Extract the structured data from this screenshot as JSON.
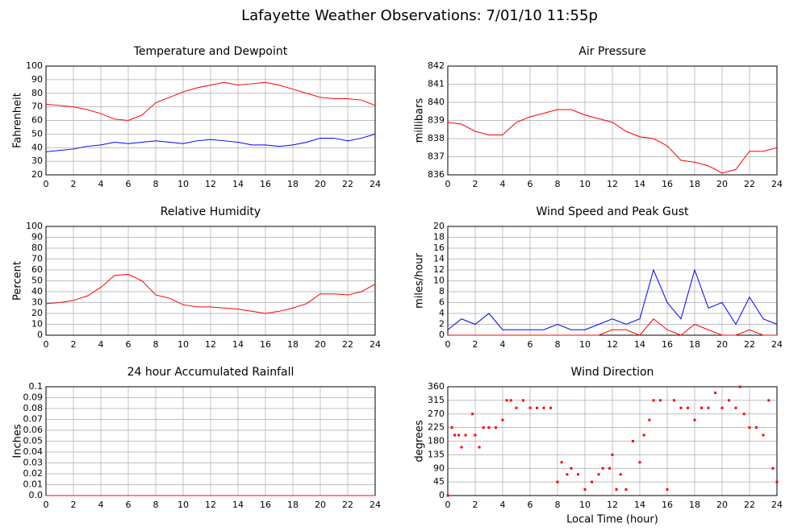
{
  "title": "Lafayette Weather Observations: 7/01/10 11:55p",
  "chart_data": [
    {
      "type": "line",
      "title": "Temperature and Dewpoint",
      "ylabel": "Fahrenheit",
      "x": [
        0,
        1,
        2,
        3,
        4,
        5,
        6,
        7,
        8,
        9,
        10,
        11,
        12,
        13,
        14,
        15,
        16,
        17,
        18,
        19,
        20,
        21,
        22,
        23,
        24
      ],
      "series": [
        {
          "color": "#ff0000",
          "values": [
            72,
            71,
            70,
            68,
            65,
            61,
            60,
            64,
            73,
            77,
            81,
            84,
            86,
            88,
            86,
            87,
            88,
            86,
            83,
            80,
            77,
            76,
            76,
            75,
            71
          ]
        },
        {
          "color": "#0000ff",
          "values": [
            37,
            38,
            39,
            41,
            42,
            44,
            43,
            44,
            45,
            44,
            43,
            45,
            46,
            45,
            44,
            42,
            42,
            41,
            42,
            44,
            47,
            47,
            45,
            47,
            50
          ]
        }
      ],
      "xlim": [
        0,
        24
      ],
      "xticks": [
        0,
        2,
        4,
        6,
        8,
        10,
        12,
        14,
        16,
        18,
        20,
        22,
        24
      ],
      "ylim": [
        20,
        100
      ],
      "yticks": [
        20,
        30,
        40,
        50,
        60,
        70,
        80,
        90,
        100
      ],
      "grid": true
    },
    {
      "type": "line",
      "title": "Air Pressure",
      "ylabel": "millibars",
      "x": [
        0,
        1,
        2,
        3,
        4,
        5,
        6,
        7,
        8,
        9,
        10,
        11,
        12,
        13,
        14,
        15,
        16,
        17,
        18,
        19,
        20,
        21,
        22,
        23,
        24
      ],
      "series": [
        {
          "color": "#ff0000",
          "values": [
            838.9,
            838.8,
            838.4,
            838.2,
            838.2,
            838.9,
            839.2,
            839.4,
            839.6,
            839.6,
            839.3,
            839.1,
            838.9,
            838.4,
            838.1,
            838.0,
            837.6,
            836.8,
            836.7,
            836.5,
            836.1,
            836.3,
            837.3,
            837.3,
            837.5
          ]
        }
      ],
      "xlim": [
        0,
        24
      ],
      "xticks": [
        0,
        2,
        4,
        6,
        8,
        10,
        12,
        14,
        16,
        18,
        20,
        22,
        24
      ],
      "ylim": [
        836,
        842
      ],
      "yticks": [
        836,
        837,
        838,
        839,
        840,
        841,
        842
      ],
      "grid": true
    },
    {
      "type": "line",
      "title": "Relative Humidity",
      "ylabel": "Percent",
      "x": [
        0,
        1,
        2,
        3,
        4,
        5,
        6,
        7,
        8,
        9,
        10,
        11,
        12,
        13,
        14,
        15,
        16,
        17,
        18,
        19,
        20,
        21,
        22,
        23,
        24
      ],
      "series": [
        {
          "color": "#ff0000",
          "values": [
            29,
            30,
            32,
            36,
            44,
            55,
            56,
            50,
            37,
            34,
            28,
            26,
            26,
            25,
            24,
            22,
            20,
            22,
            25,
            29,
            38,
            38,
            37,
            40,
            47
          ]
        }
      ],
      "xlim": [
        0,
        24
      ],
      "xticks": [
        0,
        2,
        4,
        6,
        8,
        10,
        12,
        14,
        16,
        18,
        20,
        22,
        24
      ],
      "ylim": [
        0,
        100
      ],
      "yticks": [
        0,
        10,
        20,
        30,
        40,
        50,
        60,
        70,
        80,
        90,
        100
      ],
      "grid": true
    },
    {
      "type": "line",
      "title": "Wind Speed and Peak Gust",
      "ylabel": "miles/hour",
      "x": [
        0,
        1,
        2,
        3,
        4,
        5,
        6,
        7,
        8,
        9,
        10,
        11,
        12,
        13,
        14,
        15,
        16,
        17,
        18,
        19,
        20,
        21,
        22,
        23,
        24
      ],
      "series": [
        {
          "color": "#0000ff",
          "values": [
            1,
            3,
            2,
            4,
            1,
            1,
            1,
            1,
            2,
            1,
            1,
            2,
            3,
            2,
            3,
            12,
            6,
            3,
            12,
            5,
            6,
            2,
            7,
            3,
            2
          ]
        },
        {
          "color": "#ff0000",
          "values": [
            0,
            0,
            0,
            0,
            0,
            0,
            0,
            0,
            0,
            0,
            0,
            0,
            1,
            1,
            0,
            3,
            1,
            0,
            2,
            1,
            0,
            0,
            1,
            0,
            0
          ]
        }
      ],
      "xlim": [
        0,
        24
      ],
      "xticks": [
        0,
        2,
        4,
        6,
        8,
        10,
        12,
        14,
        16,
        18,
        20,
        22,
        24
      ],
      "ylim": [
        0,
        20
      ],
      "yticks": [
        0,
        2,
        4,
        6,
        8,
        10,
        12,
        14,
        16,
        18,
        20
      ],
      "grid": true
    },
    {
      "type": "line",
      "title": "24 hour Accumulated Rainfall",
      "ylabel": "Inches",
      "x": [
        0,
        24
      ],
      "series": [
        {
          "color": "#ff0000",
          "values": [
            0,
            0
          ]
        }
      ],
      "xlim": [
        0,
        24
      ],
      "xticks": [
        0,
        2,
        4,
        6,
        8,
        10,
        12,
        14,
        16,
        18,
        20,
        22,
        24
      ],
      "ylim": [
        0,
        0.1
      ],
      "yticks": [
        {
          "value": 0,
          "label": "0.0"
        },
        0.01,
        0.02,
        0.03,
        0.04,
        0.05,
        0.06,
        0.07,
        0.08,
        0.09,
        0.1
      ],
      "grid": true
    },
    {
      "type": "scatter",
      "title": "Wind Direction",
      "ylabel": "degrees",
      "xlabel": "Local Time (hour)",
      "x": [
        0,
        0.3,
        0.5,
        0.8,
        1,
        1.3,
        1.8,
        2,
        2.3,
        2.6,
        3,
        3.5,
        4,
        4.3,
        4.6,
        5,
        5.5,
        6,
        6.5,
        7,
        7.5,
        8,
        8.3,
        8.7,
        9,
        9.5,
        10,
        10.5,
        11,
        11.3,
        11.8,
        12,
        12.3,
        12.6,
        13,
        13.5,
        14,
        14.3,
        14.7,
        15,
        15.5,
        16,
        16.5,
        17,
        17.5,
        18,
        18.5,
        19,
        19.5,
        20,
        20.5,
        21,
        21.3,
        21.6,
        22,
        22.5,
        23,
        23.4,
        23.7,
        24
      ],
      "series": [
        {
          "color": "#ff0000",
          "values": [
            0,
            225,
            200,
            200,
            160,
            200,
            270,
            200,
            160,
            225,
            225,
            225,
            250,
            315,
            315,
            290,
            315,
            290,
            290,
            290,
            290,
            45,
            110,
            70,
            90,
            70,
            20,
            45,
            70,
            90,
            90,
            135,
            20,
            70,
            20,
            180,
            110,
            200,
            250,
            315,
            315,
            20,
            315,
            290,
            290,
            250,
            290,
            290,
            340,
            290,
            315,
            290,
            360,
            270,
            225,
            225,
            200,
            315,
            90,
            45
          ]
        }
      ],
      "xlim": [
        0,
        24
      ],
      "xticks": [
        0,
        2,
        4,
        6,
        8,
        10,
        12,
        14,
        16,
        18,
        20,
        22,
        24
      ],
      "ylim": [
        0,
        360
      ],
      "yticks": [
        0,
        45,
        90,
        135,
        180,
        225,
        270,
        315,
        360
      ],
      "grid": true
    }
  ]
}
